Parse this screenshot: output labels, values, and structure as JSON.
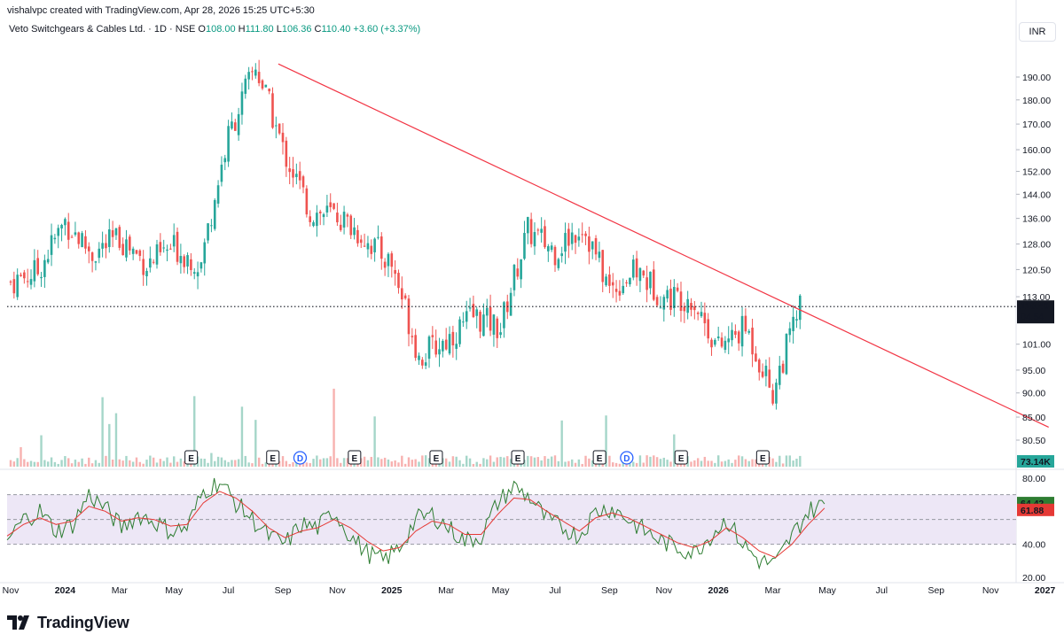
{
  "credit": "vishalvpc created with TradingView.com, Apr 28, 2026 15:25 UTC+5:30",
  "legend": {
    "symbol": "Veto Switchgears & Cables Ltd. · 1D · NSE",
    "o_label": "O",
    "o_value": "108.00",
    "h_label": "H",
    "h_value": "111.80",
    "l_label": "L",
    "l_value": "106.36",
    "c_label": "C",
    "c_value": "110.40",
    "change": "+3.60 (+3.37%)"
  },
  "currency": "INR",
  "brand": "TradingView",
  "colors": {
    "up": "#26a69a",
    "down": "#ef5350",
    "trendline": "#f23645",
    "rsi": "#2e7d32",
    "rsi_ma": "#e53935",
    "rsi_band": "#ede7f6",
    "event": "#2962ff"
  },
  "chart_data": {
    "type": "candlestick",
    "price_axis": {
      "ticks": [
        "190.00",
        "180.00",
        "170.00",
        "160.00",
        "152.00",
        "144.00",
        "136.00",
        "128.00",
        "120.50",
        "113.00",
        "101.00",
        "95.00",
        "90.00",
        "85.00",
        "80.50"
      ],
      "scale": "log"
    },
    "last_price": "110.40",
    "countdown": "04:54",
    "volume_label": "73.14K",
    "time_axis": [
      "Nov",
      "2024",
      "Mar",
      "May",
      "Jul",
      "Sep",
      "Nov",
      "2025",
      "Mar",
      "May",
      "Jul",
      "Sep",
      "Nov",
      "2026",
      "Mar",
      "May",
      "Jul",
      "Sep",
      "Nov",
      "2027"
    ],
    "price_series": [
      {
        "x": "2023-11",
        "y": 117
      },
      {
        "x": "2023-12",
        "y": 120
      },
      {
        "x": "2024-01",
        "y": 135
      },
      {
        "x": "2024-02",
        "y": 125
      },
      {
        "x": "2024-03",
        "y": 130
      },
      {
        "x": "2024-04",
        "y": 122
      },
      {
        "x": "2024-05",
        "y": 127
      },
      {
        "x": "2024-06",
        "y": 122
      },
      {
        "x": "2024-07",
        "y": 165
      },
      {
        "x": "2024-08",
        "y": 195
      },
      {
        "x": "2024-09",
        "y": 160
      },
      {
        "x": "2024-10",
        "y": 138
      },
      {
        "x": "2024-11",
        "y": 137
      },
      {
        "x": "2024-12",
        "y": 130
      },
      {
        "x": "2025-01",
        "y": 122
      },
      {
        "x": "2025-02",
        "y": 98
      },
      {
        "x": "2025-03",
        "y": 102
      },
      {
        "x": "2025-04",
        "y": 108
      },
      {
        "x": "2025-05",
        "y": 105
      },
      {
        "x": "2025-06",
        "y": 132
      },
      {
        "x": "2025-07",
        "y": 126
      },
      {
        "x": "2025-08",
        "y": 134
      },
      {
        "x": "2025-09",
        "y": 115
      },
      {
        "x": "2025-10",
        "y": 120
      },
      {
        "x": "2025-11",
        "y": 113
      },
      {
        "x": "2025-12",
        "y": 113
      },
      {
        "x": "2026-01",
        "y": 100
      },
      {
        "x": "2026-02",
        "y": 105
      },
      {
        "x": "2026-03",
        "y": 90
      },
      {
        "x": "2026-04",
        "y": 110.4
      }
    ],
    "trendline": {
      "from": {
        "x": "2024-08-26",
        "y": 196
      },
      "to": {
        "x": "2027-01-05",
        "y": 83
      }
    },
    "events": [
      {
        "label": "E",
        "x": "2024-05"
      },
      {
        "label": "E",
        "x": "2024-08"
      },
      {
        "label": "D",
        "x": "2024-09"
      },
      {
        "label": "E",
        "x": "2024-11"
      },
      {
        "label": "E",
        "x": "2025-02"
      },
      {
        "label": "E",
        "x": "2025-05"
      },
      {
        "label": "E",
        "x": "2025-08"
      },
      {
        "label": "D",
        "x": "2025-09"
      },
      {
        "label": "E",
        "x": "2025-11"
      },
      {
        "label": "E",
        "x": "2026-02"
      }
    ],
    "rsi": {
      "ticks": [
        "80.00",
        "40.00",
        "20.00"
      ],
      "band": [
        40,
        70
      ],
      "value": "64.42",
      "ma_value": "61.88",
      "series": [
        42,
        55,
        60,
        48,
        52,
        70,
        62,
        50,
        58,
        54,
        48,
        50,
        72,
        78,
        65,
        55,
        45,
        40,
        52,
        50,
        60,
        45,
        35,
        30,
        38,
        55,
        58,
        50,
        42,
        45,
        65,
        75,
        68,
        55,
        50,
        45,
        60,
        62,
        55,
        48,
        42,
        38,
        35,
        45,
        55,
        40,
        30,
        28,
        45,
        60,
        64.42
      ],
      "ma_series": [
        45,
        52,
        56,
        52,
        54,
        63,
        60,
        54,
        56,
        55,
        51,
        52,
        65,
        72,
        68,
        60,
        50,
        44,
        48,
        50,
        55,
        50,
        42,
        36,
        38,
        48,
        54,
        52,
        46,
        46,
        58,
        68,
        67,
        60,
        54,
        48,
        56,
        59,
        56,
        51,
        46,
        41,
        38,
        42,
        50,
        44,
        36,
        32,
        40,
        52,
        61.88
      ]
    }
  }
}
